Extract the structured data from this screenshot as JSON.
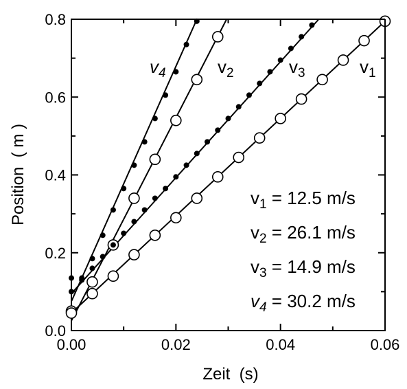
{
  "chart_data": {
    "type": "scatter",
    "title": "",
    "xlabel": "Zeit  (s)",
    "ylabel": "Position  ( m )",
    "xlim": [
      0.0,
      0.06
    ],
    "ylim": [
      0.0,
      0.8
    ],
    "xticks": [
      "0.00",
      "0.02",
      "0.04",
      "0.06"
    ],
    "yticks": [
      "0.0",
      "0.2",
      "0.4",
      "0.6",
      "0.8"
    ],
    "grid": false,
    "series": [
      {
        "name": "v1",
        "label_main": "v",
        "label_sub": "1",
        "label_italic": false,
        "marker": "open-circle",
        "fit": {
          "slope": 12.5,
          "intercept": 0.045
        },
        "x": [
          0.0,
          0.004,
          0.008,
          0.012,
          0.016,
          0.02,
          0.024,
          0.028,
          0.032,
          0.036,
          0.04,
          0.044,
          0.048,
          0.052,
          0.056,
          0.06
        ],
        "y": [
          0.05,
          0.095,
          0.14,
          0.195,
          0.245,
          0.29,
          0.34,
          0.395,
          0.445,
          0.495,
          0.545,
          0.595,
          0.645,
          0.695,
          0.745,
          0.795
        ]
      },
      {
        "name": "v2",
        "label_main": "v",
        "label_sub": "2",
        "label_italic": false,
        "marker": "open-circle",
        "fit": {
          "slope": 26.1,
          "intercept": 0.025
        },
        "x": [
          0.0,
          0.004,
          0.008,
          0.012,
          0.016,
          0.02,
          0.024,
          0.028
        ],
        "y": [
          0.045,
          0.125,
          0.22,
          0.34,
          0.44,
          0.54,
          0.645,
          0.755
        ]
      },
      {
        "name": "v3",
        "label_main": "v",
        "label_sub": "3",
        "label_italic": false,
        "marker": "filled-dot",
        "fit": {
          "slope": 14.9,
          "intercept": 0.095
        },
        "x": [
          0.0,
          0.002,
          0.004,
          0.006,
          0.008,
          0.01,
          0.012,
          0.014,
          0.016,
          0.018,
          0.02,
          0.022,
          0.024,
          0.026,
          0.028,
          0.03,
          0.032,
          0.034,
          0.036,
          0.038,
          0.04,
          0.042,
          0.044,
          0.046
        ],
        "y": [
          0.1,
          0.13,
          0.16,
          0.19,
          0.22,
          0.25,
          0.28,
          0.31,
          0.34,
          0.365,
          0.395,
          0.425,
          0.455,
          0.485,
          0.515,
          0.545,
          0.575,
          0.605,
          0.635,
          0.665,
          0.695,
          0.725,
          0.755,
          0.785
        ]
      },
      {
        "name": "v4",
        "label_main": "v",
        "label_sub": "4",
        "label_italic": true,
        "marker": "filled-dot",
        "fit": {
          "slope": 30.2,
          "intercept": 0.075
        },
        "x": [
          0.0,
          0.002,
          0.004,
          0.006,
          0.008,
          0.01,
          0.012,
          0.014,
          0.016,
          0.018,
          0.02,
          0.022,
          0.024
        ],
        "y": [
          0.135,
          0.135,
          0.185,
          0.245,
          0.31,
          0.365,
          0.425,
          0.485,
          0.545,
          0.605,
          0.665,
          0.735,
          0.795
        ]
      }
    ],
    "annotations": [
      {
        "main": "v",
        "sub": "1",
        "rest": " = 12.5 m/s",
        "italic": false
      },
      {
        "main": "v",
        "sub": "2",
        "rest": " = 26.1 m/s",
        "italic": false
      },
      {
        "main": "v",
        "sub": "3",
        "rest": " = 14.9 m/s",
        "italic": false
      },
      {
        "main": "v",
        "sub": "4",
        "rest": " = 30.2 m/s",
        "italic": true
      }
    ]
  }
}
